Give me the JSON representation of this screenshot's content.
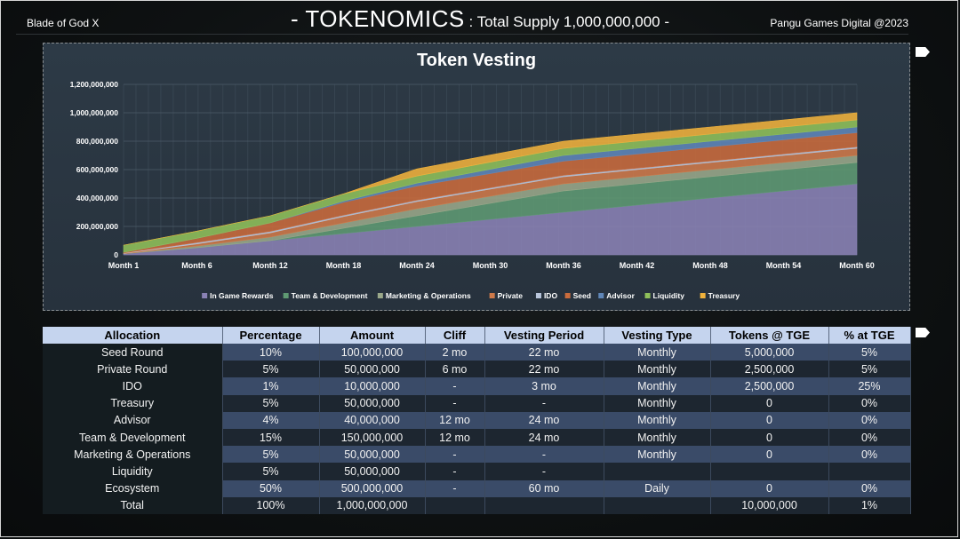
{
  "header": {
    "left": "Blade of God X",
    "title_main": "- TOKENOMICS",
    "title_sub": " : Total Supply 1,000,000,000  -",
    "right": "Pangu Games Digital @2023"
  },
  "colors": {
    "in_game_rewards": "#8a82b5",
    "team_development": "#5f9a73",
    "marketing_operations": "#9aa88a",
    "private": "#cf7a4a",
    "ido": "#b9c6dc",
    "seed": "#c96b3c",
    "advisor": "#5f86b8",
    "liquidity": "#8fc05a",
    "treasury": "#f0b23c"
  },
  "chart_data": {
    "type": "area",
    "stacked": true,
    "title": "Token Vesting",
    "x": [
      "Month 1",
      "Month 6",
      "Month 12",
      "Month 18",
      "Month 24",
      "Month 30",
      "Month 36",
      "Month 42",
      "Month 48",
      "Month 54",
      "Month 60"
    ],
    "ylim": [
      0,
      1200000000
    ],
    "yticks": [
      "0",
      "200,000,000",
      "400,000,000",
      "600,000,000",
      "800,000,000",
      "1,000,000,000",
      "1,200,000,000"
    ],
    "grid": true,
    "legend_position": "bottom",
    "series": [
      {
        "name": "In Game Rewards",
        "color_key": "in_game_rewards",
        "values": [
          8000000,
          50000000,
          100000000,
          150000000,
          200000000,
          250000000,
          300000000,
          350000000,
          400000000,
          450000000,
          500000000
        ]
      },
      {
        "name": "Team & Development",
        "color_key": "team_development",
        "values": [
          0,
          0,
          0,
          37500000,
          75000000,
          112500000,
          150000000,
          150000000,
          150000000,
          150000000,
          150000000
        ]
      },
      {
        "name": "Marketing & Operations",
        "color_key": "marketing_operations",
        "values": [
          0,
          12000000,
          25000000,
          37000000,
          50000000,
          50000000,
          50000000,
          50000000,
          50000000,
          50000000,
          50000000
        ]
      },
      {
        "name": "Private",
        "color_key": "private",
        "values": [
          2500000,
          15000000,
          30000000,
          45000000,
          50000000,
          50000000,
          50000000,
          50000000,
          50000000,
          50000000,
          50000000
        ]
      },
      {
        "name": "IDO",
        "color_key": "ido",
        "values": [
          2500000,
          10000000,
          10000000,
          10000000,
          10000000,
          10000000,
          10000000,
          10000000,
          10000000,
          10000000,
          10000000
        ]
      },
      {
        "name": "Seed",
        "color_key": "seed",
        "values": [
          5000000,
          30000000,
          60000000,
          90000000,
          100000000,
          100000000,
          100000000,
          100000000,
          100000000,
          100000000,
          100000000
        ]
      },
      {
        "name": "Advisor",
        "color_key": "advisor",
        "values": [
          0,
          0,
          0,
          10000000,
          20000000,
          30000000,
          40000000,
          40000000,
          40000000,
          40000000,
          40000000
        ]
      },
      {
        "name": "Liquidity",
        "color_key": "liquidity",
        "values": [
          50000000,
          50000000,
          50000000,
          50000000,
          50000000,
          50000000,
          50000000,
          50000000,
          50000000,
          50000000,
          50000000
        ]
      },
      {
        "name": "Treasury",
        "color_key": "treasury",
        "values": [
          0,
          0,
          0,
          0,
          50000000,
          50000000,
          50000000,
          50000000,
          50000000,
          50000000,
          50000000
        ]
      }
    ]
  },
  "table": {
    "headers": [
      "Allocation",
      "Percentage",
      "Amount",
      "Cliff",
      "Vesting Period",
      "Vesting Type",
      "Tokens @ TGE",
      "% at TGE"
    ],
    "rows": [
      [
        "Seed Round",
        "10%",
        "100,000,000",
        "2 mo",
        "22 mo",
        "Monthly",
        "5,000,000",
        "5%"
      ],
      [
        "Private Round",
        "5%",
        "50,000,000",
        "6 mo",
        "22 mo",
        "Monthly",
        "2,500,000",
        "5%"
      ],
      [
        "IDO",
        "1%",
        "10,000,000",
        "-",
        "3 mo",
        "Monthly",
        "2,500,000",
        "25%"
      ],
      [
        "Treasury",
        "5%",
        "50,000,000",
        "-",
        "-",
        "Monthly",
        "0",
        "0%"
      ],
      [
        "Advisor",
        "4%",
        "40,000,000",
        "12 mo",
        "24 mo",
        "Monthly",
        "0",
        "0%"
      ],
      [
        "Team & Development",
        "15%",
        "150,000,000",
        "12 mo",
        "24 mo",
        "Monthly",
        "0",
        "0%"
      ],
      [
        "Marketing & Operations",
        "5%",
        "50,000,000",
        "-",
        "-",
        "Monthly",
        "0",
        "0%"
      ],
      [
        "Liquidity",
        "5%",
        "50,000,000",
        "-",
        "-",
        "",
        "",
        ""
      ],
      [
        "Ecosystem",
        "50%",
        "500,000,000",
        "-",
        "60 mo",
        "Daily",
        "0",
        "0%"
      ],
      [
        "Total",
        "100%",
        "1,000,000,000",
        "",
        "",
        "",
        "10,000,000",
        "1%"
      ]
    ]
  }
}
